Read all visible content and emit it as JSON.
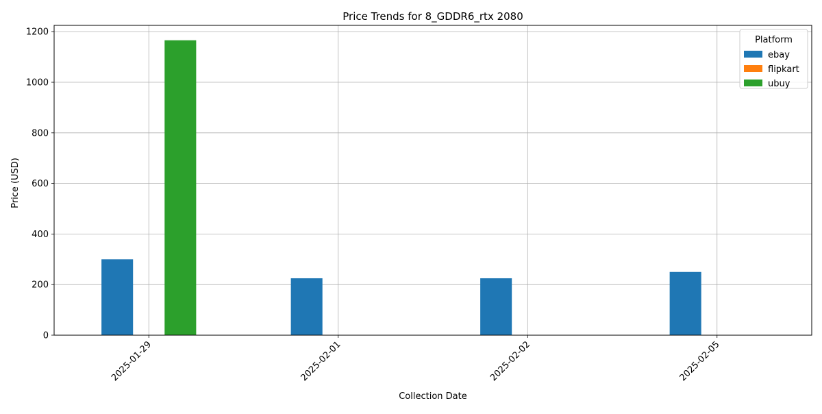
{
  "chart_data": {
    "type": "bar",
    "title": "Price Trends for 8_GDDR6_rtx 2080",
    "xlabel": "Collection Date",
    "ylabel": "Price (USD)",
    "categories": [
      "2025-01-29",
      "2025-02-01",
      "2025-02-02",
      "2025-02-05"
    ],
    "series": [
      {
        "name": "ebay",
        "color": "#1f77b4",
        "values": [
          300,
          225,
          225,
          250
        ]
      },
      {
        "name": "flipkart",
        "color": "#ff7f0e",
        "values": [
          0,
          0,
          0,
          0
        ]
      },
      {
        "name": "ubuy",
        "color": "#2ca02c",
        "values": [
          1166,
          0,
          0,
          0
        ]
      }
    ],
    "ylim": [
      0,
      1225
    ],
    "yticks": [
      0,
      200,
      400,
      600,
      800,
      1000,
      1200
    ],
    "grid": true,
    "legend": {
      "title": "Platform",
      "placement": "top-right"
    }
  }
}
